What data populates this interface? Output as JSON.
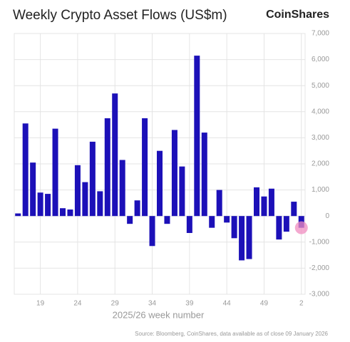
{
  "chart_data": {
    "type": "bar",
    "title": "Weekly Crypto Asset Flows (US$m)",
    "brand": "CoinShares",
    "x_label": "2025/26 week number",
    "source": "Source: Bloomberg, CoinShares, data available as of close 09 January 2026",
    "categories": [
      null,
      null,
      null,
      "19",
      null,
      null,
      null,
      null,
      "24",
      null,
      null,
      null,
      null,
      "29",
      null,
      null,
      null,
      null,
      "34",
      null,
      null,
      null,
      null,
      "39",
      null,
      null,
      null,
      null,
      "44",
      null,
      null,
      null,
      null,
      "49",
      null,
      null,
      null,
      null,
      "2"
    ],
    "values": [
      100,
      3550,
      2050,
      900,
      850,
      3350,
      300,
      250,
      1950,
      1300,
      2850,
      950,
      3750,
      4700,
      2150,
      -300,
      600,
      3750,
      -1150,
      2500,
      -300,
      3300,
      1900,
      -650,
      6150,
      3200,
      -450,
      1000,
      -250,
      -850,
      -1700,
      -1650,
      1100,
      750,
      1050,
      -900,
      -600,
      550,
      -450
    ],
    "color": "#1c10b8",
    "ylim": [
      -3000,
      7000
    ],
    "yticks": [
      {
        "value": 7000,
        "label": "7,000"
      },
      {
        "value": 6000,
        "label": "6,000"
      },
      {
        "value": 5000,
        "label": "5,000"
      },
      {
        "value": 4000,
        "label": "4,000"
      },
      {
        "value": 3000,
        "label": "3,000"
      },
      {
        "value": 2000,
        "label": "2,000"
      },
      {
        "value": 1000,
        "label": "1,000"
      },
      0,
      {
        "value": -1000,
        "label": "-1,000"
      },
      {
        "value": -2000,
        "label": "-2,000"
      },
      {
        "value": -3000,
        "label": "-3,000"
      }
    ],
    "grid": true
  }
}
